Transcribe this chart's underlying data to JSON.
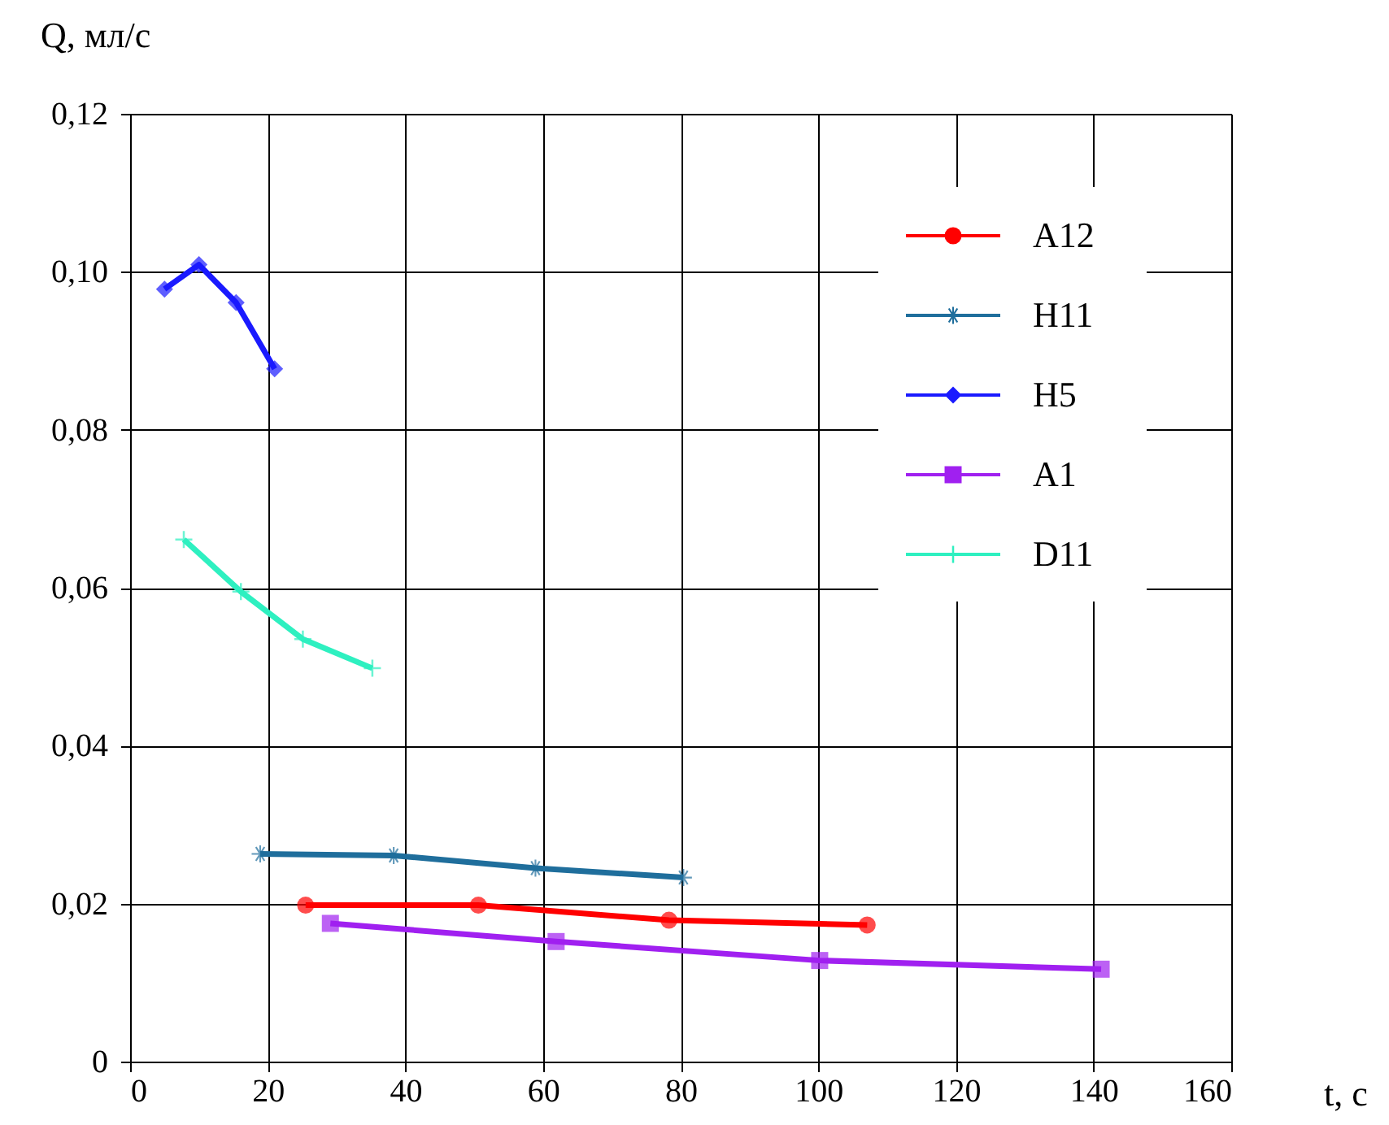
{
  "chart_data": {
    "type": "line",
    "xlabel": "t, с",
    "ylabel": "Q, мл/с",
    "xlim": [
      0,
      160
    ],
    "xticks": [
      0,
      20,
      40,
      60,
      80,
      100,
      120,
      140,
      160
    ],
    "ylim": [
      0,
      0.12
    ],
    "yticks": [
      0,
      {
        "value": 0.02,
        "label": "0,02"
      },
      {
        "value": 0.04,
        "label": "0,04"
      },
      {
        "value": 0.06,
        "label": "0,06"
      },
      {
        "value": 0.08,
        "label": "0,08"
      },
      {
        "value": 0.1,
        "label": "0,10"
      },
      {
        "value": 0.12,
        "label": "0,12"
      }
    ],
    "grid": true,
    "legend": "top right",
    "line_style": "solid",
    "series": [
      {
        "name": "A12",
        "color": "#ff0000",
        "marker": "circle",
        "x": [
          25.5,
          50.6,
          78.3,
          107.1
        ],
        "values": [
          0.0198,
          0.0198,
          0.0179,
          0.0173
        ]
      },
      {
        "name": "H11",
        "color": "#1f6e9c",
        "marker": "star",
        "x": [
          18.9,
          38.3,
          58.9,
          80.4
        ],
        "values": [
          0.0263,
          0.0261,
          0.0245,
          0.0233
        ]
      },
      {
        "name": "H5",
        "color": "#1a1aff",
        "marker": "diamond",
        "x": [
          5.0,
          10.0,
          15.4,
          21.0
        ],
        "values": [
          0.0978,
          0.1009,
          0.0961,
          0.0877
        ]
      },
      {
        "name": "A1",
        "color": "#a020f0",
        "marker": "square",
        "x": [
          29.1,
          61.9,
          100.2,
          141.1
        ],
        "values": [
          0.0175,
          0.0152,
          0.0128,
          0.0117
        ]
      },
      {
        "name": "D11",
        "color": "#2ef0c0",
        "marker": "cross",
        "x": [
          7.8,
          16.1,
          25.1,
          35.2
        ],
        "values": [
          0.0661,
          0.0595,
          0.0535,
          0.0498
        ]
      }
    ]
  }
}
